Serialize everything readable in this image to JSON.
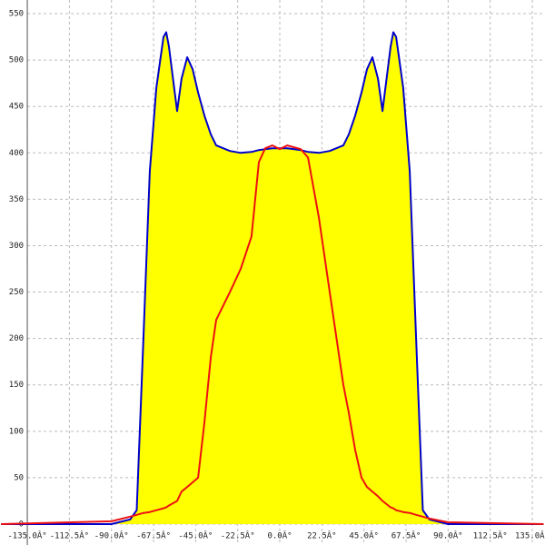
{
  "chart_data": {
    "type": "line",
    "x": [
      -149,
      -90,
      -80,
      -76.5,
      -72.9,
      -69.5,
      -66,
      -62.2,
      -60.7,
      -59.3,
      -54.9,
      -52.5,
      -49.5,
      -46.6,
      -43.7,
      -40.3,
      -36.9,
      -34,
      -26.7,
      -20.9,
      -15.1,
      -11.2,
      -7.8,
      -3.9,
      0,
      3.9,
      7.8,
      11.2,
      15.1,
      20.9,
      26.7,
      34,
      36.9,
      40.3,
      43.7,
      46.6,
      49.5,
      52.5,
      54.9,
      59.3,
      60.7,
      62.2,
      66,
      69.5,
      72.9,
      76.5,
      80,
      90,
      141
    ],
    "series": [
      {
        "color": "#0000cc",
        "fill": "#ffff00",
        "values": [
          0,
          0,
          5,
          15,
          200,
          380,
          470,
          525,
          530,
          515,
          445,
          480,
          503,
          490,
          465,
          440,
          420,
          408,
          402,
          400,
          401,
          403,
          404,
          405,
          405,
          405,
          404,
          403,
          401,
          400,
          402,
          408,
          420,
          440,
          465,
          490,
          503,
          480,
          445,
          515,
          530,
          525,
          470,
          380,
          200,
          15,
          5,
          0,
          0
        ]
      },
      {
        "color": "#ee1111",
        "values": [
          0,
          3,
          8,
          10,
          12,
          13,
          15,
          17,
          18,
          20,
          25,
          35,
          40,
          45,
          50,
          110,
          180,
          220,
          250,
          275,
          310,
          390,
          405,
          408,
          404,
          408,
          406,
          404,
          395,
          330,
          250,
          150,
          120,
          80,
          50,
          40,
          35,
          30,
          25,
          18,
          17,
          15,
          13,
          12,
          10,
          8,
          6,
          2,
          0
        ]
      }
    ],
    "xlim": [
      -149.6,
      141.8
    ],
    "ylim": [
      -22.5,
      564.7
    ],
    "xticks": [
      {
        "value": -135,
        "label": "-135.0Â°"
      },
      {
        "value": -112.5,
        "label": "-112.5Â°"
      },
      {
        "value": -90,
        "label": "-90.0Â°"
      },
      {
        "value": -67.5,
        "label": "-67.5Â°"
      },
      {
        "value": -45,
        "label": "-45.0Â°"
      },
      {
        "value": -22.5,
        "label": "-22.5Â°"
      },
      {
        "value": 0,
        "label": "0.0Â°"
      },
      {
        "value": 22.5,
        "label": "22.5Â°"
      },
      {
        "value": 45,
        "label": "45.0Â°"
      },
      {
        "value": 67.5,
        "label": "67.5Â°"
      },
      {
        "value": 90,
        "label": "90.0Â°"
      },
      {
        "value": 112.5,
        "label": "112.5Â°"
      },
      {
        "value": 135,
        "label": "135.0Â°"
      }
    ],
    "yticks": [
      0,
      50,
      100,
      150,
      200,
      250,
      300,
      350,
      400,
      450,
      500,
      550
    ],
    "grid": true
  }
}
